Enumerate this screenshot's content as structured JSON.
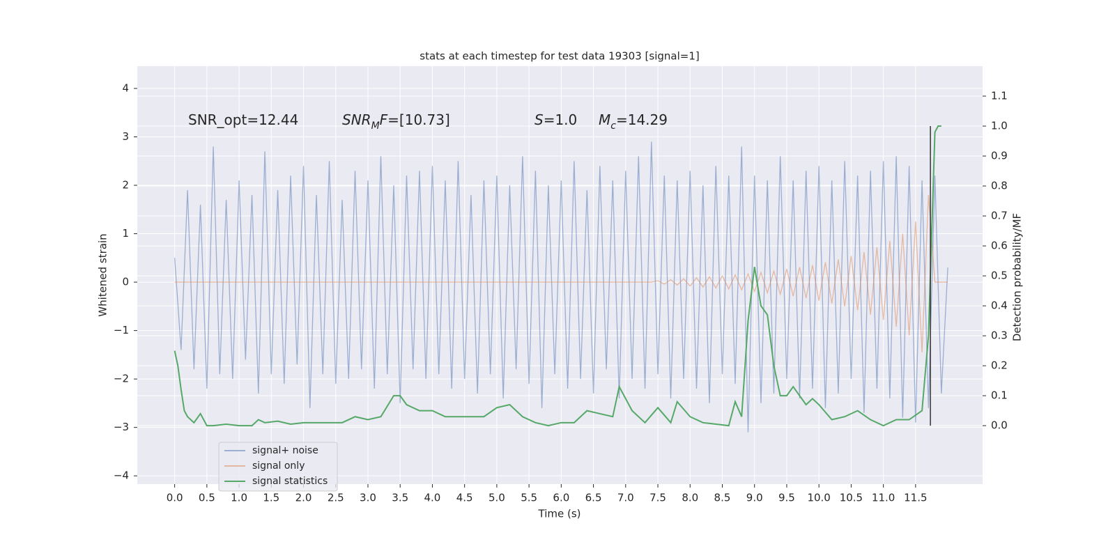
{
  "chart_data": {
    "type": "line",
    "title": "stats at each timestep for test data 19303 [signal=1]",
    "x_label": "Time (s)",
    "y_label": "Whitened strain",
    "y2_label": "Detection probability/MF",
    "annotations": [
      [
        {
          "t": "SNR_opt=12.44"
        }
      ],
      [
        {
          "t": "SNR",
          "italic": true
        },
        {
          "t": "M",
          "italic": true,
          "sub": true
        },
        {
          "t": "F",
          "italic": true
        },
        {
          "t": "=[10.73]"
        }
      ],
      [
        {
          "t": "S",
          "italic": true
        },
        {
          "t": "=1.0"
        }
      ],
      [
        {
          "t": "M",
          "italic": true
        },
        {
          "t": "c",
          "italic": true,
          "sub": true
        },
        {
          "t": "=14.29"
        }
      ]
    ],
    "x": [
      0,
      0.1,
      0.2,
      0.3,
      0.4,
      0.5,
      0.6,
      0.7,
      0.8,
      0.9,
      1,
      1.1,
      1.2,
      1.3,
      1.4,
      1.5,
      1.6,
      1.7,
      1.8,
      1.9,
      2,
      2.1,
      2.2,
      2.3,
      2.4,
      2.5,
      2.6,
      2.7,
      2.8,
      2.9,
      3,
      3.1,
      3.2,
      3.3,
      3.4,
      3.5,
      3.6,
      3.7,
      3.8,
      3.9,
      4,
      4.1,
      4.2,
      4.3,
      4.4,
      4.5,
      4.6,
      4.7,
      4.8,
      4.9,
      5,
      5.1,
      5.2,
      5.3,
      5.4,
      5.5,
      5.6,
      5.7,
      5.8,
      5.9,
      6,
      6.1,
      6.2,
      6.3,
      6.4,
      6.5,
      6.6,
      6.7,
      6.8,
      6.9,
      7,
      7.1,
      7.2,
      7.3,
      7.4,
      7.5,
      7.6,
      7.7,
      7.8,
      7.9,
      8,
      8.1,
      8.2,
      8.3,
      8.4,
      8.5,
      8.6,
      8.7,
      8.8,
      8.9,
      9,
      9.1,
      9.2,
      9.3,
      9.4,
      9.5,
      9.6,
      9.7,
      9.8,
      9.9,
      10,
      10.1,
      10.2,
      10.3,
      10.4,
      10.5,
      10.6,
      10.7,
      10.8,
      10.9,
      11,
      11.1,
      11.2,
      11.3,
      11.4,
      11.5,
      11.6,
      11.7,
      11.8,
      11.9,
      12
    ],
    "series": [
      {
        "name": "signal+ noise",
        "color": "#4c72b0",
        "opacity": 0.5,
        "values": [
          0.5,
          -1.4,
          1.9,
          -1.8,
          1.6,
          -2.2,
          2.8,
          -1.9,
          1.7,
          -2.0,
          2.1,
          -1.6,
          1.8,
          -2.3,
          2.7,
          -1.9,
          1.9,
          -2.1,
          2.2,
          -1.7,
          2.4,
          -2.6,
          1.8,
          -1.9,
          2.5,
          -2.1,
          1.7,
          -2.0,
          2.3,
          -1.8,
          2.1,
          -2.2,
          2.6,
          -1.9,
          2.0,
          -2.5,
          2.2,
          -1.8,
          2.3,
          -2.0,
          2.4,
          -1.9,
          2.1,
          -2.2,
          2.5,
          -2.0,
          1.8,
          -2.3,
          2.1,
          -1.9,
          2.2,
          -2.4,
          2.0,
          -1.8,
          2.6,
          -2.1,
          2.3,
          -2.6,
          2.0,
          -1.9,
          2.1,
          -2.2,
          2.5,
          -2.0,
          1.9,
          -2.3,
          2.4,
          -1.8,
          2.1,
          -2.4,
          2.3,
          -2.0,
          2.6,
          -2.2,
          2.9,
          -1.9,
          2.2,
          -2.4,
          2.1,
          -2.0,
          2.3,
          -2.2,
          2.0,
          -2.5,
          2.4,
          -1.9,
          2.2,
          -2.1,
          2.8,
          -3.1,
          2.2,
          -2.5,
          2.1,
          -2.3,
          2.6,
          -2.0,
          2.1,
          -2.4,
          2.3,
          -2.2,
          2.4,
          -2.6,
          2.1,
          -2.3,
          2.5,
          -2.0,
          2.2,
          -2.7,
          2.3,
          -2.2,
          2.5,
          -2.4,
          2.6,
          -2.8,
          2.4,
          -2.9,
          2.1,
          -2.6,
          2.2,
          -2.3,
          0.3
        ]
      },
      {
        "name": "signal only",
        "color": "#dd8452",
        "opacity": 0.5,
        "values": [
          0,
          0,
          0,
          0,
          0,
          0,
          0,
          0,
          0,
          0,
          0,
          0,
          0,
          0,
          0,
          0,
          0,
          0,
          0,
          0,
          0,
          0,
          0,
          0,
          0,
          0,
          0,
          0,
          0,
          0,
          0,
          0,
          0,
          0,
          0,
          0,
          0,
          0,
          0,
          0,
          0,
          0,
          0,
          0,
          0,
          0,
          0,
          0,
          0,
          0,
          0,
          0,
          0,
          0,
          0,
          0,
          0,
          0,
          0,
          0,
          0,
          0,
          0,
          0,
          0,
          0,
          0,
          0,
          0,
          0,
          0,
          0,
          0,
          0,
          0,
          0.03,
          -0.04,
          0.05,
          -0.06,
          0.07,
          -0.08,
          0.09,
          -0.1,
          0.11,
          -0.12,
          0.13,
          -0.14,
          0.15,
          -0.16,
          0.17,
          -0.19,
          0.2,
          -0.22,
          0.23,
          -0.25,
          0.27,
          -0.29,
          0.31,
          -0.33,
          0.35,
          -0.38,
          0.41,
          -0.44,
          0.47,
          -0.5,
          0.54,
          -0.58,
          0.62,
          -0.67,
          0.72,
          -0.78,
          0.85,
          -0.92,
          1.0,
          -1.1,
          1.25,
          -1.45,
          1.8,
          0,
          0,
          0
        ]
      },
      {
        "name": "signal statistics",
        "color": "#55a868",
        "opacity": 1,
        "axis": "y2",
        "x": [
          0,
          0.05,
          0.1,
          0.15,
          0.2,
          0.3,
          0.4,
          0.5,
          0.6,
          0.8,
          1.0,
          1.2,
          1.3,
          1.4,
          1.6,
          1.8,
          2.0,
          2.4,
          2.6,
          2.8,
          3.0,
          3.2,
          3.4,
          3.5,
          3.6,
          3.8,
          4.0,
          4.2,
          4.4,
          4.6,
          4.8,
          5.0,
          5.2,
          5.4,
          5.6,
          5.8,
          6.0,
          6.2,
          6.4,
          6.6,
          6.8,
          6.9,
          7.1,
          7.3,
          7.5,
          7.7,
          7.8,
          8.0,
          8.2,
          8.6,
          8.7,
          8.8,
          8.9,
          9.0,
          9.1,
          9.2,
          9.3,
          9.4,
          9.5,
          9.6,
          9.7,
          9.8,
          9.9,
          10.0,
          10.2,
          10.4,
          10.6,
          10.8,
          11.0,
          11.2,
          11.4,
          11.6,
          11.7,
          11.8,
          11.85,
          11.9
        ],
        "values": [
          0.25,
          0.2,
          0.12,
          0.05,
          0.03,
          0.01,
          0.04,
          0.0,
          0.0,
          0.005,
          0.0,
          0.0,
          0.02,
          0.01,
          0.015,
          0.005,
          0.01,
          0.01,
          0.01,
          0.03,
          0.02,
          0.03,
          0.1,
          0.1,
          0.07,
          0.05,
          0.05,
          0.03,
          0.03,
          0.03,
          0.03,
          0.06,
          0.07,
          0.03,
          0.01,
          0.0,
          0.01,
          0.01,
          0.05,
          0.04,
          0.03,
          0.13,
          0.05,
          0.01,
          0.06,
          0.01,
          0.08,
          0.03,
          0.01,
          0.0,
          0.08,
          0.03,
          0.35,
          0.53,
          0.4,
          0.37,
          0.2,
          0.1,
          0.1,
          0.13,
          0.1,
          0.07,
          0.09,
          0.07,
          0.02,
          0.03,
          0.05,
          0.02,
          0.0,
          0.02,
          0.02,
          0.05,
          0.3,
          0.98,
          1.0,
          1.0
        ]
      }
    ],
    "vline": {
      "x": 11.73,
      "ymin": 0,
      "ymax": 1,
      "color": "#333333"
    },
    "xlim": [
      -0.58,
      12.54
    ],
    "xticks": [
      {
        "value": 0,
        "label": "0.0"
      },
      {
        "value": 0.5,
        "label": "0.5"
      },
      {
        "value": 1,
        "label": "1.0"
      },
      {
        "value": 1.5,
        "label": "1.5"
      },
      {
        "value": 2,
        "label": "2.0"
      },
      {
        "value": 2.5,
        "label": "2.5"
      },
      {
        "value": 3,
        "label": "3.0"
      },
      {
        "value": 3.5,
        "label": "3.5"
      },
      {
        "value": 4,
        "label": "4.0"
      },
      {
        "value": 4.5,
        "label": "4.5"
      },
      {
        "value": 5,
        "label": "5.0"
      },
      {
        "value": 5.5,
        "label": "5.5"
      },
      {
        "value": 6,
        "label": "6.0"
      },
      {
        "value": 6.5,
        "label": "6.5"
      },
      {
        "value": 7,
        "label": "7.0"
      },
      {
        "value": 7.5,
        "label": "7.5"
      },
      {
        "value": 8,
        "label": "8.0"
      },
      {
        "value": 8.5,
        "label": "8.5"
      },
      {
        "value": 9,
        "label": "9.0"
      },
      {
        "value": 9.5,
        "label": "9.5"
      },
      {
        "value": 10,
        "label": "10.0"
      },
      {
        "value": 10.5,
        "label": "10.5"
      },
      {
        "value": 11,
        "label": "11.0"
      },
      {
        "value": 11.5,
        "label": "11.5"
      }
    ],
    "ylim": [
      -4.17,
      4.46
    ],
    "yticks": [
      {
        "value": -4,
        "label": "−4"
      },
      {
        "value": -3,
        "label": "−3"
      },
      {
        "value": -2,
        "label": "−2"
      },
      {
        "value": -1,
        "label": "−1"
      },
      0,
      1,
      2,
      3,
      4
    ],
    "y2lim": [
      -0.195,
      1.2
    ],
    "y2ticks": [
      {
        "value": 0,
        "label": "0.0"
      },
      {
        "value": 0.1,
        "label": "0.1"
      },
      {
        "value": 0.2,
        "label": "0.2"
      },
      {
        "value": 0.3,
        "label": "0.3"
      },
      {
        "value": 0.4,
        "label": "0.4"
      },
      {
        "value": 0.5,
        "label": "0.5"
      },
      {
        "value": 0.6,
        "label": "0.6"
      },
      {
        "value": 0.7,
        "label": "0.7"
      },
      {
        "value": 0.8,
        "label": "0.8"
      },
      {
        "value": 0.9,
        "label": "0.9"
      },
      {
        "value": 1,
        "label": "1.0"
      },
      {
        "value": 1.1,
        "label": "1.1"
      }
    ],
    "grid": true,
    "legend": "lower left"
  }
}
